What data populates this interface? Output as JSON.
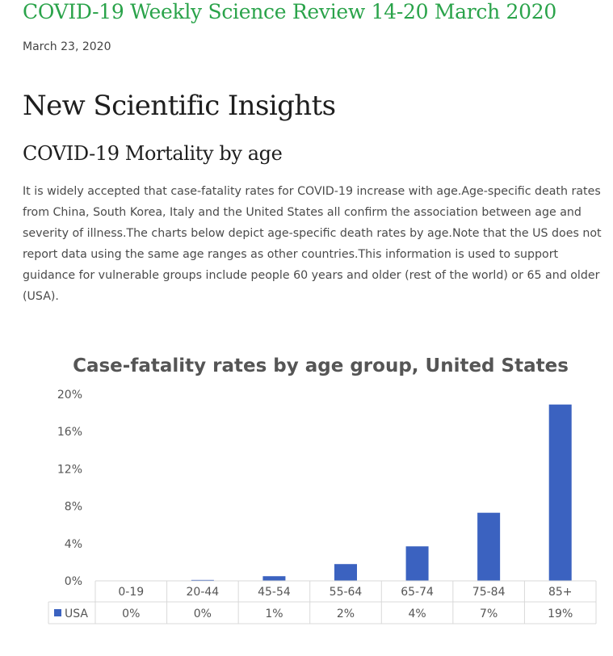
{
  "post": {
    "title": "COVID-19 Weekly Science Review 14-20 March 2020",
    "date": "March 23, 2020",
    "heading": "New Scientific Insights",
    "subheading": "COVID-19 Mortality by age",
    "paragraph": "It is widely accepted that case-fatality rates for COVID-19 increase with age.Age-specific death rates from China, South Korea, Italy and the United States all confirm the association between age and severity of illness.The charts below depict age-specific death rates by age.Note that the US does not report data using the same age ranges as other countries.This information is used to support guidance for vulnerable groups include people 60 years and older (rest of the world) or 65 and older (USA)."
  },
  "colors": {
    "title_green": "#2aa34a",
    "bar_blue": "#3b62c0",
    "table_border": "#d9d9d9"
  },
  "chart_data": {
    "type": "bar",
    "title": "Case-fatality rates by age group, United States",
    "categories": [
      "0-19",
      "20-44",
      "45-54",
      "55-64",
      "65-74",
      "75-84",
      "85+"
    ],
    "series": [
      {
        "name": "USA",
        "values": [
          0.0,
          0.1,
          0.5,
          1.8,
          3.7,
          7.3,
          18.9
        ],
        "table_labels": [
          "0%",
          "0%",
          "1%",
          "2%",
          "4%",
          "7%",
          "19%"
        ]
      }
    ],
    "yticks": [
      "0%",
      "4%",
      "8%",
      "12%",
      "16%",
      "20%"
    ],
    "ylim": [
      0,
      20
    ],
    "xlabel": "",
    "ylabel": "",
    "grid": false,
    "legend": "data-table"
  }
}
